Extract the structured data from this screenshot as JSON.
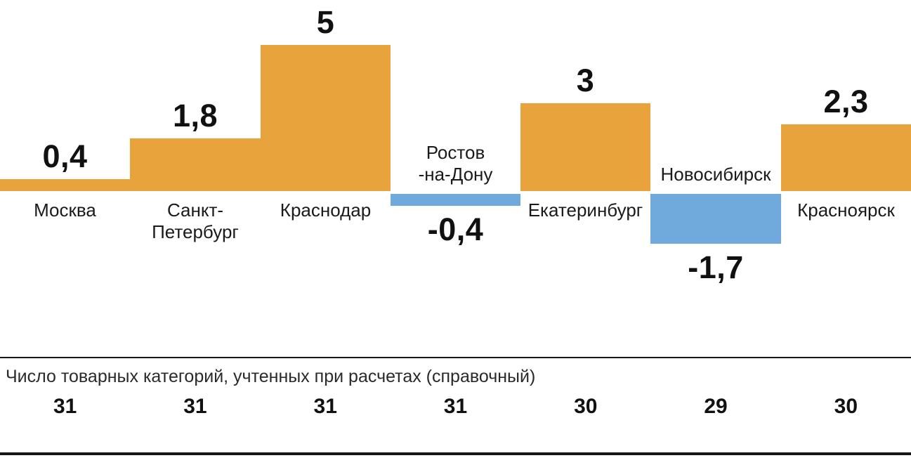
{
  "chart_data": {
    "type": "bar",
    "title": "",
    "categories": [
      "Москва",
      "Санкт-\nПетербург",
      "Краснодар",
      "Ростов\n-на-Дону",
      "Екатеринбург",
      "Новосибирск",
      "Красноярск"
    ],
    "values": [
      0.4,
      1.8,
      5,
      -0.4,
      3,
      -1.7,
      2.3
    ],
    "value_labels": [
      "0,4",
      "1,8",
      "5",
      "-0,4",
      "3",
      "-1,7",
      "2,3"
    ],
    "positive_color": "#E8A33C",
    "negative_color": "#70A9DC",
    "ylim": [
      -2,
      5.5
    ],
    "grid": "off",
    "legend": "none",
    "layout": "bars contiguous, full column width, value labels bold outside bar ends, category labels opposite side of zero baseline"
  },
  "footer": {
    "note": "Число товарных категорий, учтенных при расчетах (справочный)",
    "counts": [
      31,
      31,
      31,
      31,
      30,
      29,
      30
    ]
  }
}
